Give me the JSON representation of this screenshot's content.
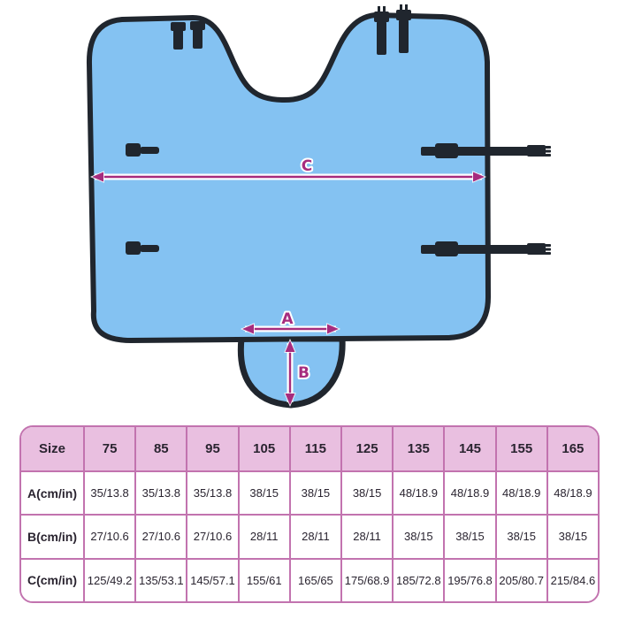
{
  "diagram": {
    "labels": {
      "a": "A",
      "b": "B",
      "c": "C"
    },
    "colors": {
      "cover_blue": "#84c2f2",
      "binding_dark": "#20262e",
      "dimension_magenta": "#a62c7e"
    }
  },
  "size_table": {
    "header_label": "Size",
    "columns": [
      "75",
      "85",
      "95",
      "105",
      "115",
      "125",
      "135",
      "145",
      "155",
      "165"
    ],
    "rows": [
      {
        "label": "A(cm/in)",
        "values": [
          "35/13.8",
          "35/13.8",
          "35/13.8",
          "38/15",
          "38/15",
          "38/15",
          "48/18.9",
          "48/18.9",
          "48/18.9",
          "48/18.9"
        ]
      },
      {
        "label": "B(cm/in)",
        "values": [
          "27/10.6",
          "27/10.6",
          "27/10.6",
          "28/11",
          "28/11",
          "28/11",
          "38/15",
          "38/15",
          "38/15",
          "38/15"
        ]
      },
      {
        "label": "C(cm/in)",
        "values": [
          "125/49.2",
          "135/53.1",
          "145/57.1",
          "155/61",
          "165/65",
          "175/68.9",
          "185/72.8",
          "195/76.8",
          "205/80.7",
          "215/84.6"
        ]
      }
    ],
    "colors": {
      "header_bg": "#e9bfe0",
      "border": "#c273af",
      "text": "#2a2430"
    }
  }
}
